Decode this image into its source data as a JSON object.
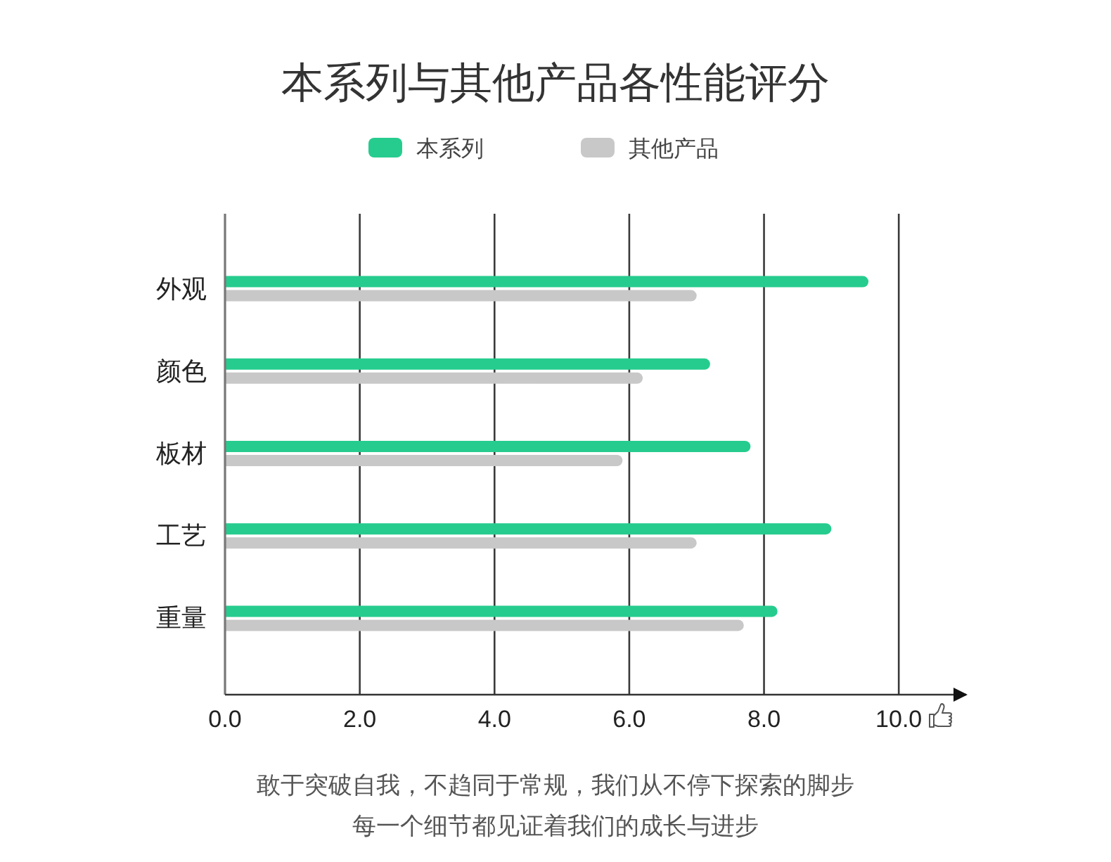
{
  "chart_data": {
    "type": "bar",
    "orientation": "horizontal",
    "title": "本系列与其他产品各性能评分",
    "categories": [
      "外观",
      "颜色",
      "板材",
      "工艺",
      "重量"
    ],
    "series": [
      {
        "name": "本系列",
        "color": "#26cc8e",
        "values": [
          9.55,
          7.2,
          7.8,
          9.0,
          8.2
        ]
      },
      {
        "name": "其他产品",
        "color": "#c8c8c8",
        "values": [
          7.0,
          6.2,
          5.9,
          7.0,
          7.7
        ]
      }
    ],
    "xlim": [
      0,
      11
    ],
    "xticks": [
      {
        "value": 0,
        "label": "0.0"
      },
      {
        "value": 2,
        "label": "2.0"
      },
      {
        "value": 4,
        "label": "4.0"
      },
      {
        "value": 6,
        "label": "6.0"
      },
      {
        "value": 8,
        "label": "8.0"
      },
      {
        "value": 10,
        "label": "10.0"
      }
    ],
    "grid": "x",
    "legend": "top",
    "annotations": [
      "敢于突破自我，不趋同于常规，我们从不停下探索的脚步",
      "每一个细节都见证着我们的成长与进步"
    ]
  }
}
